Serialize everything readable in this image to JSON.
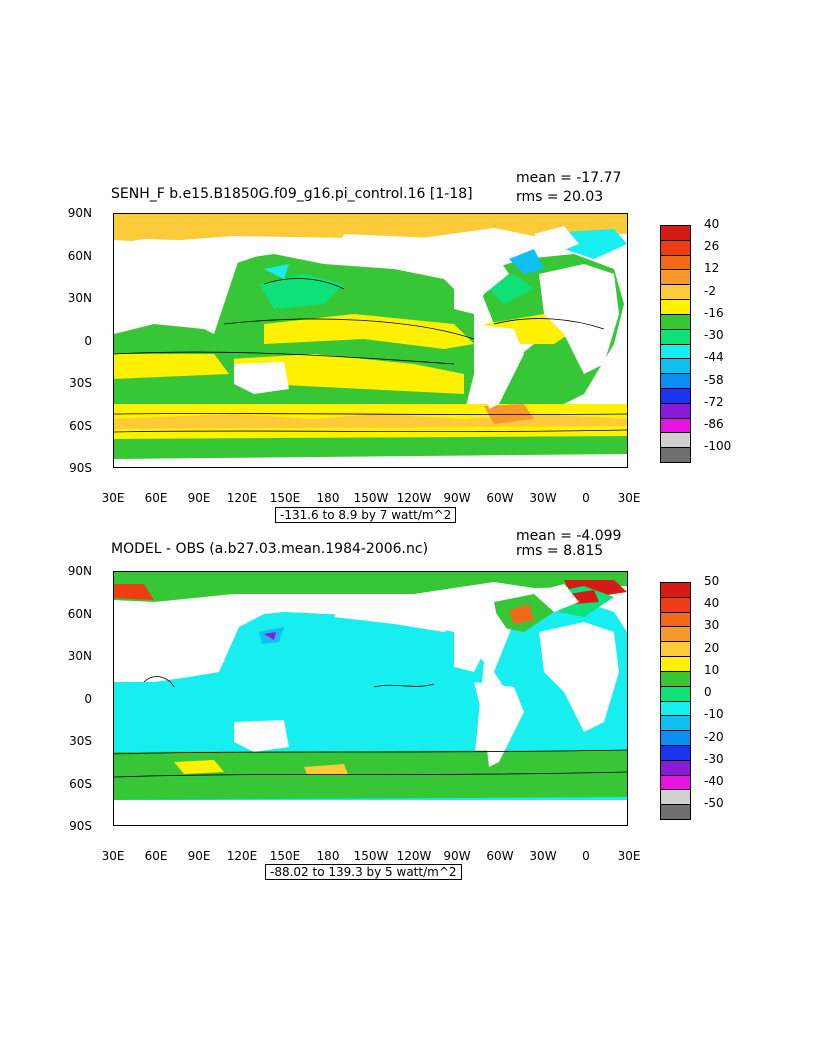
{
  "panels": [
    {
      "title": "SENH_F b.e15.B1850G.f09_g16.pi_control.16 [1-18]",
      "mean": "mean = -17.77",
      "rms": "rms = 20.03",
      "range": "-131.6 to 8.9 by 7 watt/m^2",
      "colorbar": {
        "labels": [
          "40",
          "26",
          "12",
          "-2",
          "-16",
          "-30",
          "-44",
          "-58",
          "-72",
          "-86",
          "-100"
        ],
        "colors": [
          "#d71a15",
          "#ee3c14",
          "#f26a18",
          "#f89a2a",
          "#fdca3a",
          "#fff100",
          "#37c736",
          "#0ee178",
          "#16eef0",
          "#11c0f2",
          "#0a8ef3",
          "#1a34ef",
          "#8a1ad6",
          "#e614e0",
          "#d0d0d0",
          "#707070"
        ]
      }
    },
    {
      "title": "MODEL - OBS (a.b27.03.mean.1984-2006.nc)",
      "mean": "mean = -4.099",
      "rms": "rms = 8.815",
      "range": "-88.02 to 139.3 by 5 watt/m^2",
      "colorbar": {
        "labels": [
          "50",
          "40",
          "30",
          "20",
          "10",
          "0",
          "-10",
          "-20",
          "-30",
          "-40",
          "-50"
        ],
        "colors": [
          "#d71a15",
          "#ee3c14",
          "#f26a18",
          "#f89a2a",
          "#fdca3a",
          "#fff100",
          "#37c736",
          "#0ee178",
          "#16eef0",
          "#11c0f2",
          "#0a8ef3",
          "#1a34ef",
          "#8a1ad6",
          "#e614e0",
          "#d0d0d0",
          "#707070"
        ]
      }
    }
  ],
  "axes": {
    "lat_labels": [
      "90N",
      "60N",
      "30N",
      "0",
      "30S",
      "60S",
      "90S"
    ],
    "lon_labels": [
      "30E",
      "60E",
      "90E",
      "120E",
      "150E",
      "180",
      "150W",
      "120W",
      "90W",
      "60W",
      "30W",
      "0",
      "30E"
    ]
  },
  "colors": {
    "land": "#ffffff",
    "ocean_top_base": "#37c736",
    "ocean_bottom_base": "#16eef0"
  }
}
